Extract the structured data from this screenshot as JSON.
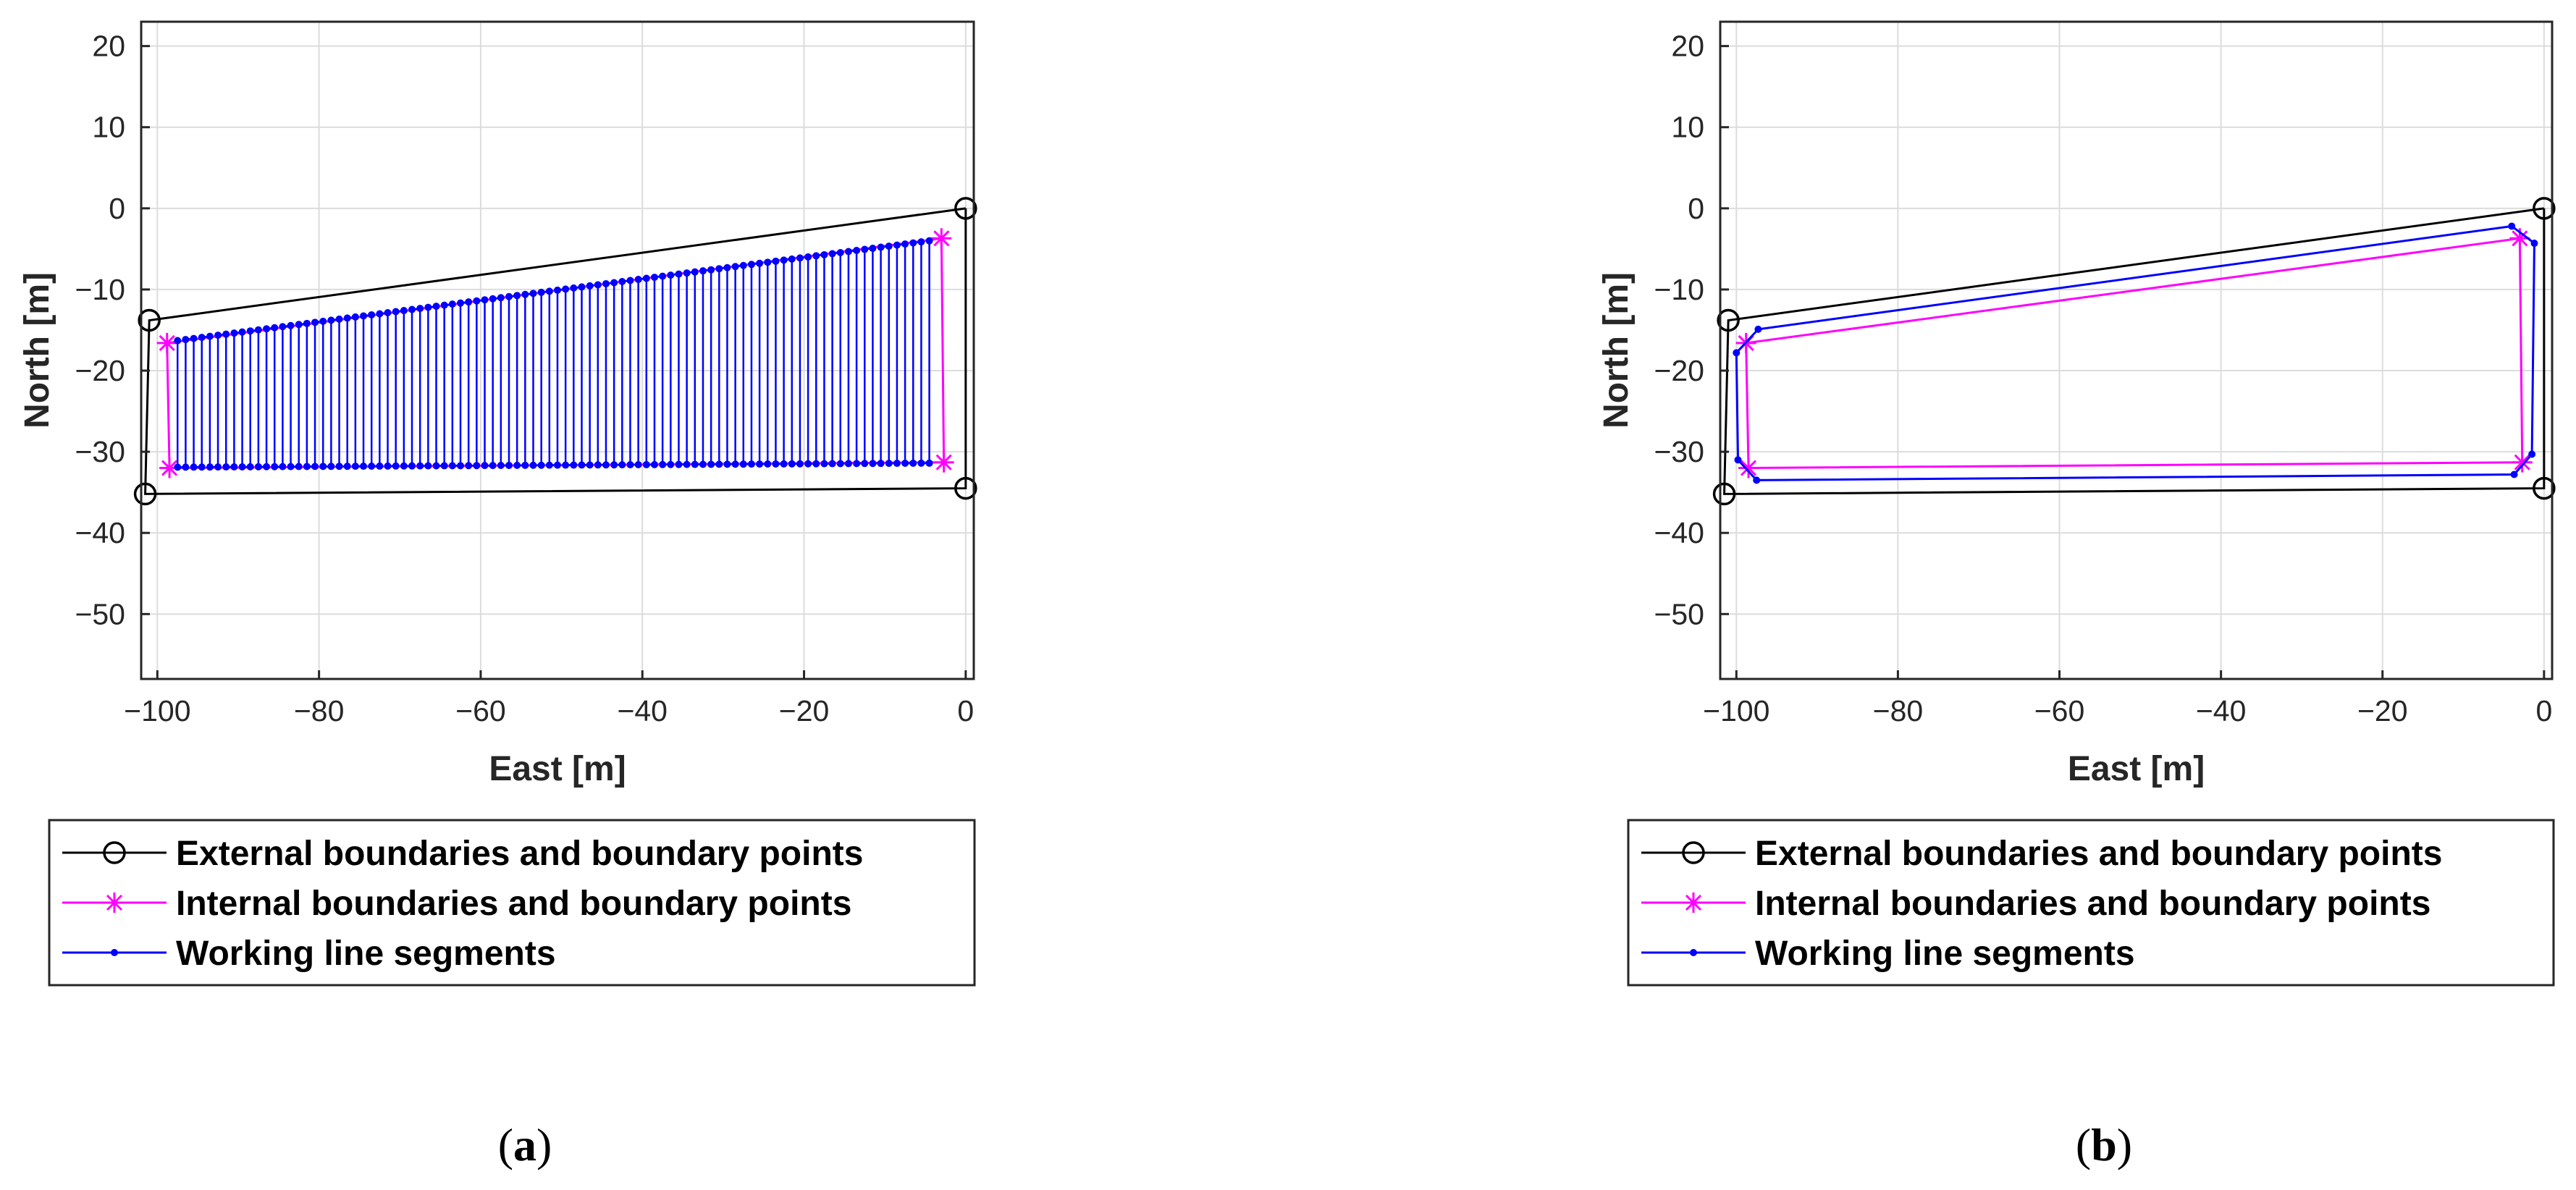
{
  "colors": {
    "external": "#000000",
    "internal": "#ff00ff",
    "working": "#0000ff",
    "grid": "#dcdcdc",
    "axis": "#262626"
  },
  "legend": {
    "external": "External boundaries and boundary points",
    "internal": "Internal boundaries and boundary points",
    "working": "Working line segments",
    "external_marker": "open-circle",
    "internal_marker": "asterisk",
    "working_marker": "dot"
  },
  "chart_data": [
    {
      "type": "line",
      "caption": "a",
      "xlabel": "East [m]",
      "ylabel": "North [m]",
      "xlim": [
        -102,
        1
      ],
      "ylim": [
        -58,
        23
      ],
      "xticks": [
        -100,
        -80,
        -60,
        -40,
        -20,
        0
      ],
      "yticks": [
        20,
        10,
        0,
        -10,
        -20,
        -30,
        -40,
        -50
      ],
      "grid": true,
      "legend_position": "below",
      "series": [
        {
          "name": "External boundaries and boundary points",
          "marker": "circle",
          "x": [
            0,
            -101,
            -101.5,
            0,
            0
          ],
          "y": [
            0,
            -13.8,
            -35.2,
            -34.5,
            0
          ]
        },
        {
          "name": "Internal boundaries and boundary points",
          "marker": "asterisk",
          "x": [
            -3,
            -98.8,
            -98.5,
            -2.7,
            -3
          ],
          "y": [
            -3.7,
            -16.6,
            -32,
            -31.3,
            -3.7
          ]
        },
        {
          "name": "Working line segments",
          "marker": "dot",
          "pattern": "parallel north-south segments",
          "top_start": [
            -97.5,
            -16.3
          ],
          "top_end": [
            -4.5,
            -4.0
          ],
          "bottom_start": [
            -97.5,
            -31.9
          ],
          "bottom_end": [
            -4.5,
            -31.4
          ],
          "count": 94
        }
      ]
    },
    {
      "type": "line",
      "caption": "b",
      "xlabel": "East [m]",
      "ylabel": "North [m]",
      "xlim": [
        -102,
        1
      ],
      "ylim": [
        -58,
        23
      ],
      "xticks": [
        -100,
        -80,
        -60,
        -40,
        -20,
        0
      ],
      "yticks": [
        20,
        10,
        0,
        -10,
        -20,
        -30,
        -40,
        -50
      ],
      "grid": true,
      "legend_position": "below",
      "series": [
        {
          "name": "External boundaries and boundary points",
          "marker": "circle",
          "x": [
            0,
            -101,
            -101.5,
            0,
            0
          ],
          "y": [
            0,
            -13.8,
            -35.2,
            -34.5,
            0
          ]
        },
        {
          "name": "Internal boundaries and boundary points",
          "marker": "asterisk",
          "x": [
            -3,
            -98.8,
            -98.5,
            -2.7,
            -3
          ],
          "y": [
            -3.7,
            -16.6,
            -32,
            -31.3,
            -3.7
          ]
        },
        {
          "name": "Working line segments",
          "marker": "dot",
          "x": [
            -4,
            -97.3,
            -100,
            -99.8,
            -97.5,
            -3.7,
            -1.5,
            -1.2,
            -4
          ],
          "y": [
            -2.2,
            -14.9,
            -17.8,
            -31,
            -33.5,
            -32.8,
            -30.3,
            -4.3,
            -2.2
          ]
        }
      ]
    }
  ]
}
